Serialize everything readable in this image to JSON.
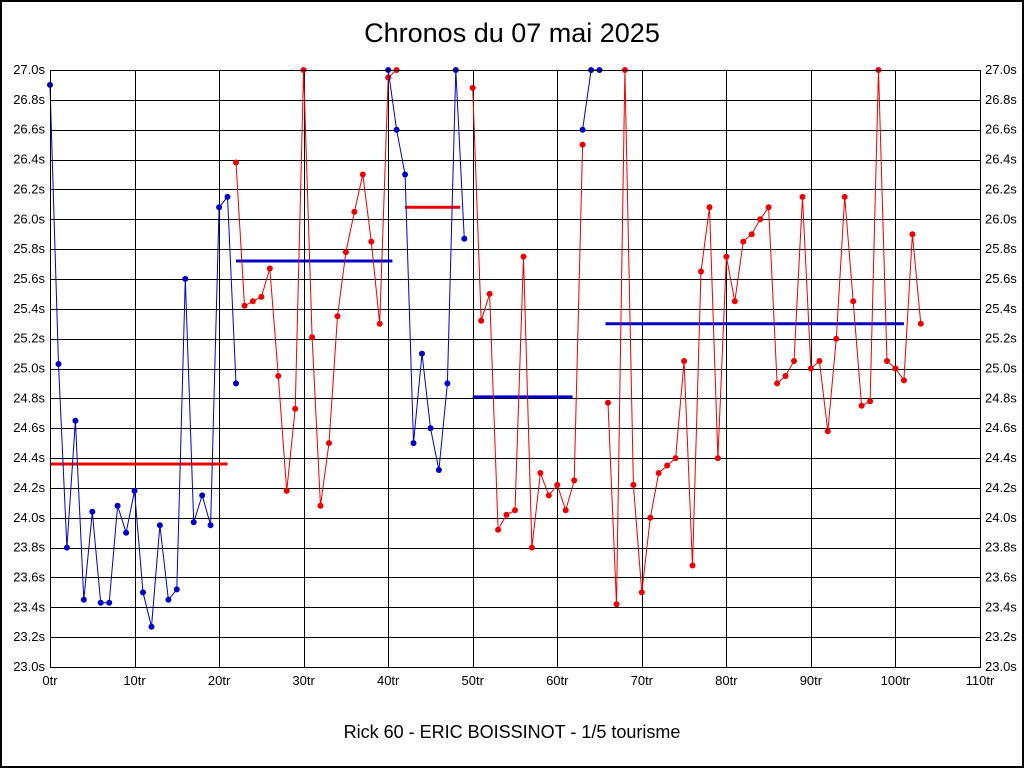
{
  "chart_data": {
    "type": "line",
    "title": "Chronos du 07 mai 2025",
    "footer": "Rick 60 - ERIC BOISSINOT - 1/5 tourisme",
    "xlabel": "",
    "ylabel": "",
    "xlim": [
      0,
      110
    ],
    "ylim": [
      23.0,
      27.0
    ],
    "grid": true,
    "legend": "none",
    "x_ticks": [
      0,
      10,
      20,
      30,
      40,
      50,
      60,
      70,
      80,
      90,
      100,
      110
    ],
    "x_tick_labels": [
      "0tr",
      "10tr",
      "20tr",
      "30tr",
      "40tr",
      "50tr",
      "60tr",
      "70tr",
      "80tr",
      "90tr",
      "100tr",
      "110tr"
    ],
    "y_ticks": [
      23.0,
      23.2,
      23.4,
      23.6,
      23.8,
      24.0,
      24.2,
      24.4,
      24.6,
      24.8,
      25.0,
      25.2,
      25.4,
      25.6,
      25.8,
      26.0,
      26.2,
      26.4,
      26.6,
      26.8,
      27.0
    ],
    "y_tick_labels": [
      "23.0s",
      "23.2s",
      "23.4s",
      "23.6s",
      "23.8s",
      "24.0s",
      "24.2s",
      "24.4s",
      "24.6s",
      "24.8s",
      "25.0s",
      "25.2s",
      "25.4s",
      "25.6s",
      "25.8s",
      "26.0s",
      "26.2s",
      "26.4s",
      "26.6s",
      "26.8s",
      "27.0s"
    ],
    "colors": {
      "blue": "#0000cd",
      "red": "#ee0000"
    },
    "segments": [
      {
        "name": "stint-1",
        "color": "blue",
        "start_lap": 0,
        "times": [
          26.9,
          25.03,
          23.8,
          24.65,
          23.45,
          24.04,
          23.43,
          23.43,
          24.08,
          23.9,
          24.18,
          23.5,
          23.27,
          23.95,
          23.45,
          23.52,
          25.6,
          23.97,
          24.15,
          23.95,
          26.08,
          26.15,
          24.9
        ]
      },
      {
        "name": "stint-2",
        "color": "red",
        "start_lap": 22,
        "times": [
          26.38,
          25.42,
          25.45,
          25.48,
          25.67,
          24.95,
          24.18,
          24.73,
          27.0,
          25.21,
          24.08,
          24.5,
          25.35,
          25.78,
          26.05,
          26.3,
          25.85,
          25.3,
          26.95,
          27.0
        ]
      },
      {
        "name": "stint-3",
        "color": "blue",
        "start_lap": 40,
        "times": [
          27.0,
          26.6,
          26.3,
          24.5,
          25.1,
          24.6,
          24.32,
          24.9,
          27.0,
          25.87
        ]
      },
      {
        "name": "stint-4",
        "color": "red",
        "start_lap": 50,
        "times": [
          26.88,
          25.32,
          25.5,
          23.92,
          24.02,
          24.05,
          25.75,
          23.8,
          24.3,
          24.15,
          24.22,
          24.05,
          24.25,
          26.5
        ]
      },
      {
        "name": "stint-5",
        "color": "blue",
        "start_lap": 63,
        "times": [
          26.6,
          27.0,
          27.0
        ]
      },
      {
        "name": "stint-6",
        "color": "red",
        "start_lap": 66,
        "times": [
          24.77,
          23.42,
          27.0,
          24.22,
          23.5,
          24.0,
          24.3,
          24.35,
          24.4,
          25.05,
          23.68,
          25.65,
          26.08,
          24.4,
          25.75,
          25.45,
          25.85,
          25.9,
          26.0,
          26.08,
          24.9,
          24.95,
          25.05,
          26.15,
          25.0,
          25.05,
          24.58,
          25.2,
          26.15,
          25.45,
          24.75,
          24.78,
          27.0,
          25.05,
          25.0,
          24.92,
          25.9,
          25.3
        ]
      }
    ],
    "average_lines": [
      {
        "color": "red",
        "value": 24.36,
        "from_lap": 0,
        "to_lap": 21
      },
      {
        "color": "blue",
        "value": 25.72,
        "from_lap": 22,
        "to_lap": 40.5
      },
      {
        "color": "red",
        "value": 26.08,
        "from_lap": 42,
        "to_lap": 48.5
      },
      {
        "color": "blue",
        "value": 24.81,
        "from_lap": 50,
        "to_lap": 61.8
      },
      {
        "color": "blue",
        "value": 25.3,
        "from_lap": 65.7,
        "to_lap": 101
      }
    ]
  }
}
